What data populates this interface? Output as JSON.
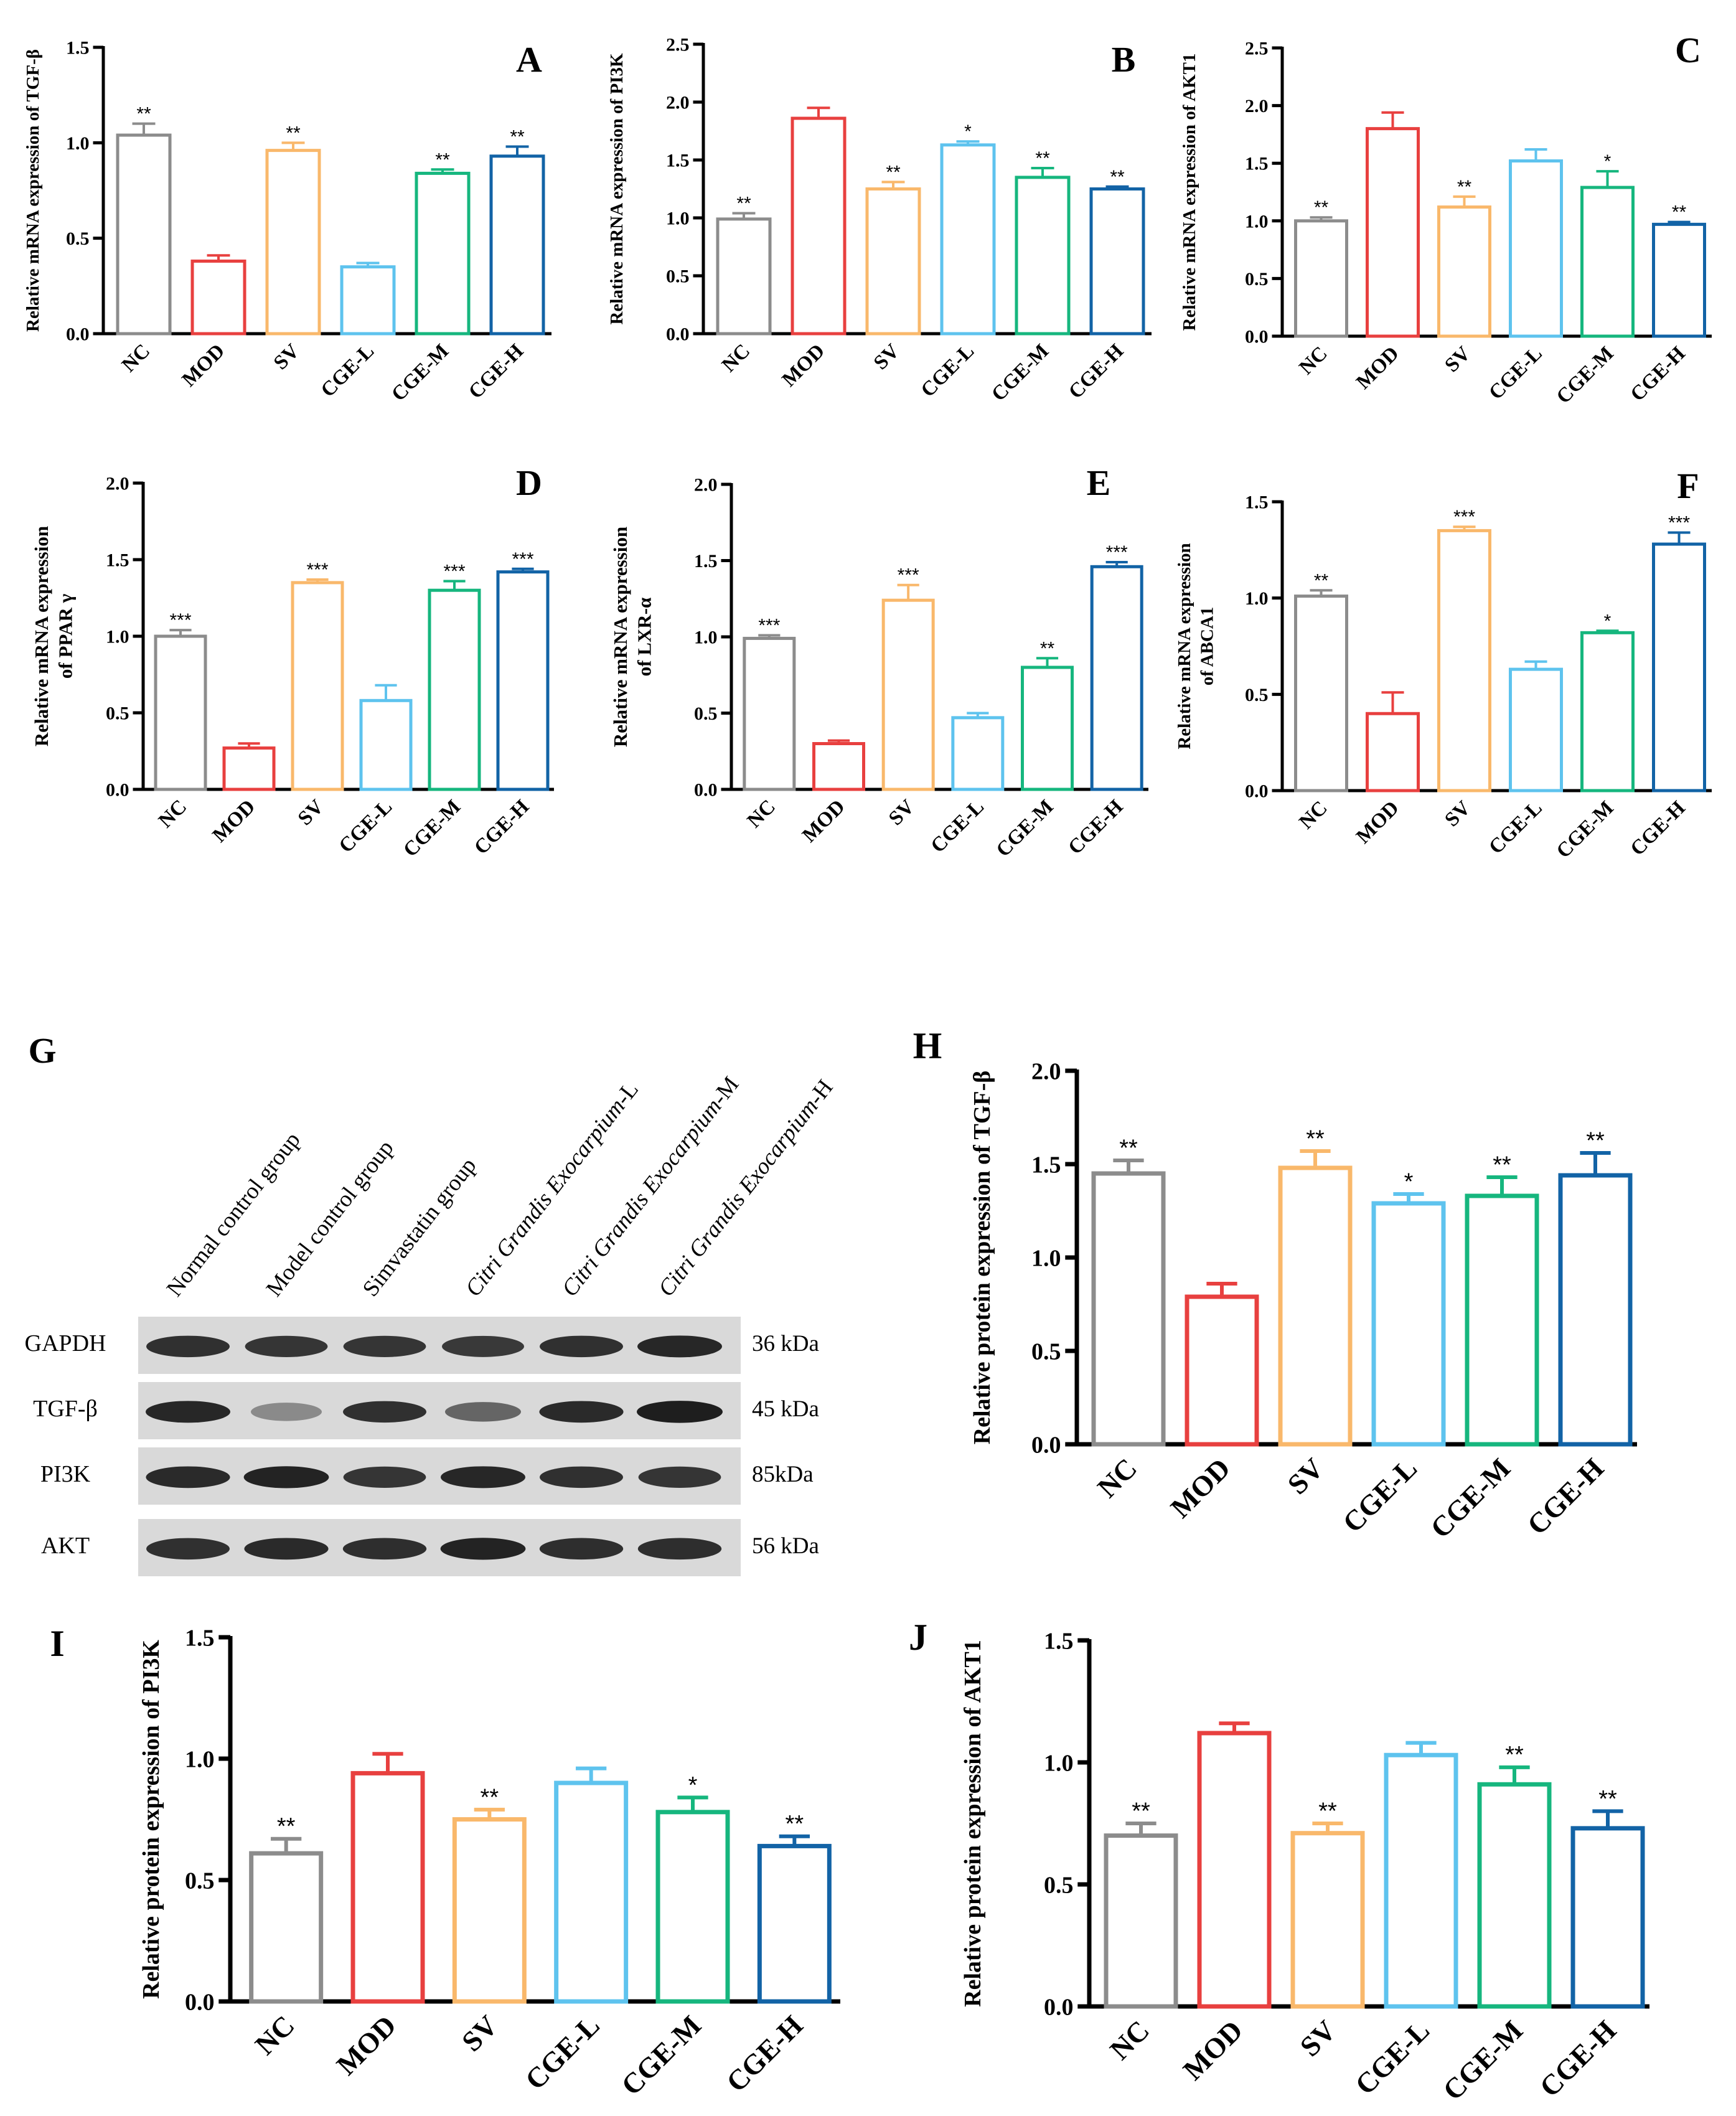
{
  "colors": {
    "NC": "#8c8c8c",
    "MOD": "#e8403f",
    "SV": "#f9b86b",
    "CGE-L": "#5ec3ee",
    "CGE-M": "#16b67e",
    "CGE-H": "#1263a6"
  },
  "chart_data": [
    {
      "panel": "A",
      "type": "bar",
      "ylabel": "Relative mRNA expression of TGF-β",
      "ylim": [
        0,
        1.5
      ],
      "yticks": [
        "0.0",
        "0.5",
        "1.0",
        "1.5"
      ],
      "categories": [
        "NC",
        "MOD",
        "SV",
        "CGE-L",
        "CGE-M",
        "CGE-H"
      ],
      "values": [
        1.04,
        0.38,
        0.96,
        0.35,
        0.84,
        0.93
      ],
      "errors": [
        0.06,
        0.03,
        0.04,
        0.02,
        0.02,
        0.05
      ],
      "significance": [
        "**",
        "",
        "**",
        "",
        "**",
        "**"
      ]
    },
    {
      "panel": "B",
      "type": "bar",
      "ylabel": "Relative mRNA expression of PI3K",
      "ylim": [
        0,
        2.5
      ],
      "yticks": [
        "0.0",
        "0.5",
        "1.0",
        "1.5",
        "2.0",
        "2.5"
      ],
      "categories": [
        "NC",
        "MOD",
        "SV",
        "CGE-L",
        "CGE-M",
        "CGE-H"
      ],
      "values": [
        0.99,
        1.86,
        1.25,
        1.63,
        1.35,
        1.25
      ],
      "errors": [
        0.05,
        0.09,
        0.06,
        0.03,
        0.08,
        0.02
      ],
      "significance": [
        "**",
        "",
        "**",
        "*",
        "**",
        "**"
      ]
    },
    {
      "panel": "C",
      "type": "bar",
      "ylabel": "Relative mRNA expression of AKT1",
      "ylim": [
        0,
        2.5
      ],
      "yticks": [
        "0.0",
        "0.5",
        "1.0",
        "1.5",
        "2.0",
        "2.5"
      ],
      "categories": [
        "NC",
        "MOD",
        "SV",
        "CGE-L",
        "CGE-M",
        "CGE-H"
      ],
      "values": [
        1.0,
        1.8,
        1.12,
        1.52,
        1.29,
        0.97
      ],
      "errors": [
        0.03,
        0.14,
        0.09,
        0.1,
        0.14,
        0.02
      ],
      "significance": [
        "**",
        "",
        "**",
        "",
        "*",
        "**"
      ]
    },
    {
      "panel": "D",
      "type": "bar",
      "ylabel": [
        "Relative mRNA expression",
        "of PPAR γ"
      ],
      "ylim": [
        0,
        2.0
      ],
      "yticks": [
        "0.0",
        "0.5",
        "1.0",
        "1.5",
        "2.0"
      ],
      "categories": [
        "NC",
        "MOD",
        "SV",
        "CGE-L",
        "CGE-M",
        "CGE-H"
      ],
      "values": [
        1.0,
        0.27,
        1.35,
        0.58,
        1.3,
        1.42
      ],
      "errors": [
        0.04,
        0.03,
        0.02,
        0.1,
        0.06,
        0.02
      ],
      "significance": [
        "***",
        "",
        "***",
        "",
        "***",
        "***"
      ]
    },
    {
      "panel": "E",
      "type": "bar",
      "ylabel": [
        "Relative mRNA expression",
        "of LXR-α"
      ],
      "ylim": [
        0,
        2.0
      ],
      "yticks": [
        "0.0",
        "0.5",
        "1.0",
        "1.5",
        "2.0"
      ],
      "categories": [
        "NC",
        "MOD",
        "SV",
        "CGE-L",
        "CGE-M",
        "CGE-H"
      ],
      "values": [
        0.99,
        0.3,
        1.24,
        0.47,
        0.8,
        1.46
      ],
      "errors": [
        0.02,
        0.02,
        0.1,
        0.03,
        0.06,
        0.03
      ],
      "significance": [
        "***",
        "",
        "***",
        "",
        "**",
        "***"
      ]
    },
    {
      "panel": "F",
      "type": "bar",
      "ylabel": [
        "Relative mRNA expression",
        "of ABCA1"
      ],
      "ylim": [
        0,
        1.5
      ],
      "yticks": [
        "0.0",
        "0.5",
        "1.0",
        "1.5"
      ],
      "categories": [
        "NC",
        "MOD",
        "SV",
        "CGE-L",
        "CGE-M",
        "CGE-H"
      ],
      "values": [
        1.01,
        0.4,
        1.35,
        0.63,
        0.82,
        1.28
      ],
      "errors": [
        0.03,
        0.11,
        0.02,
        0.04,
        0.01,
        0.06
      ],
      "significance": [
        "**",
        "",
        "***",
        "",
        "*",
        "***"
      ]
    },
    {
      "panel": "H",
      "type": "bar",
      "ylabel": "Relative protein expression of TGF-β",
      "ylim": [
        0,
        2.0
      ],
      "yticks": [
        "0.0",
        "0.5",
        "1.0",
        "1.5",
        "2.0"
      ],
      "categories": [
        "NC",
        "MOD",
        "SV",
        "CGE-L",
        "CGE-M",
        "CGE-H"
      ],
      "values": [
        1.45,
        0.79,
        1.48,
        1.29,
        1.33,
        1.44
      ],
      "errors": [
        0.07,
        0.07,
        0.09,
        0.05,
        0.1,
        0.12
      ],
      "significance": [
        "**",
        "",
        "**",
        "*",
        "**",
        "**"
      ]
    },
    {
      "panel": "I",
      "type": "bar",
      "ylabel": "Relative protein expression of PI3K",
      "ylim": [
        0,
        1.5
      ],
      "yticks": [
        "0.0",
        "0.5",
        "1.0",
        "1.5"
      ],
      "categories": [
        "NC",
        "MOD",
        "SV",
        "CGE-L",
        "CGE-M",
        "CGE-H"
      ],
      "values": [
        0.61,
        0.94,
        0.75,
        0.9,
        0.78,
        0.64
      ],
      "errors": [
        0.06,
        0.08,
        0.04,
        0.06,
        0.06,
        0.04
      ],
      "significance": [
        "**",
        "",
        "**",
        "",
        "*",
        "**"
      ]
    },
    {
      "panel": "J",
      "type": "bar",
      "ylabel": "Relative protein expression of AKT1",
      "ylim": [
        0,
        1.5
      ],
      "yticks": [
        "0.0",
        "0.5",
        "1.0",
        "1.5"
      ],
      "categories": [
        "NC",
        "MOD",
        "SV",
        "CGE-L",
        "CGE-M",
        "CGE-H"
      ],
      "values": [
        0.7,
        1.12,
        0.71,
        1.03,
        0.91,
        0.73
      ],
      "errors": [
        0.05,
        0.04,
        0.04,
        0.05,
        0.07,
        0.07
      ],
      "significance": [
        "**",
        "",
        "**",
        "",
        "**",
        "**"
      ]
    }
  ],
  "western_blot": {
    "panel": "G",
    "groups": [
      {
        "text": "Normal control group",
        "italic_part": ""
      },
      {
        "text": "Model control group",
        "italic_part": ""
      },
      {
        "text": "Simvastatin group",
        "italic_part": ""
      },
      {
        "text": "-L",
        "italic_part": "Citri Grandis Exocarpium"
      },
      {
        "text": "-M",
        "italic_part": "Citri Grandis Exocarpium"
      },
      {
        "text": "-H",
        "italic_part": "Citri Grandis Exocarpium"
      }
    ],
    "rows": [
      {
        "protein": "GAPDH",
        "size": "36 kDa",
        "intensity": [
          0.85,
          0.82,
          0.82,
          0.8,
          0.85,
          0.9
        ]
      },
      {
        "protein": "TGF-β",
        "size": "45 kDa",
        "intensity": [
          0.9,
          0.35,
          0.85,
          0.55,
          0.88,
          0.95
        ]
      },
      {
        "protein": "PI3K",
        "size": "85kDa",
        "intensity": [
          0.88,
          0.92,
          0.82,
          0.9,
          0.85,
          0.82
        ]
      },
      {
        "protein": "AKT",
        "size": "56 kDa",
        "intensity": [
          0.85,
          0.88,
          0.86,
          0.92,
          0.86,
          0.86
        ]
      }
    ]
  }
}
